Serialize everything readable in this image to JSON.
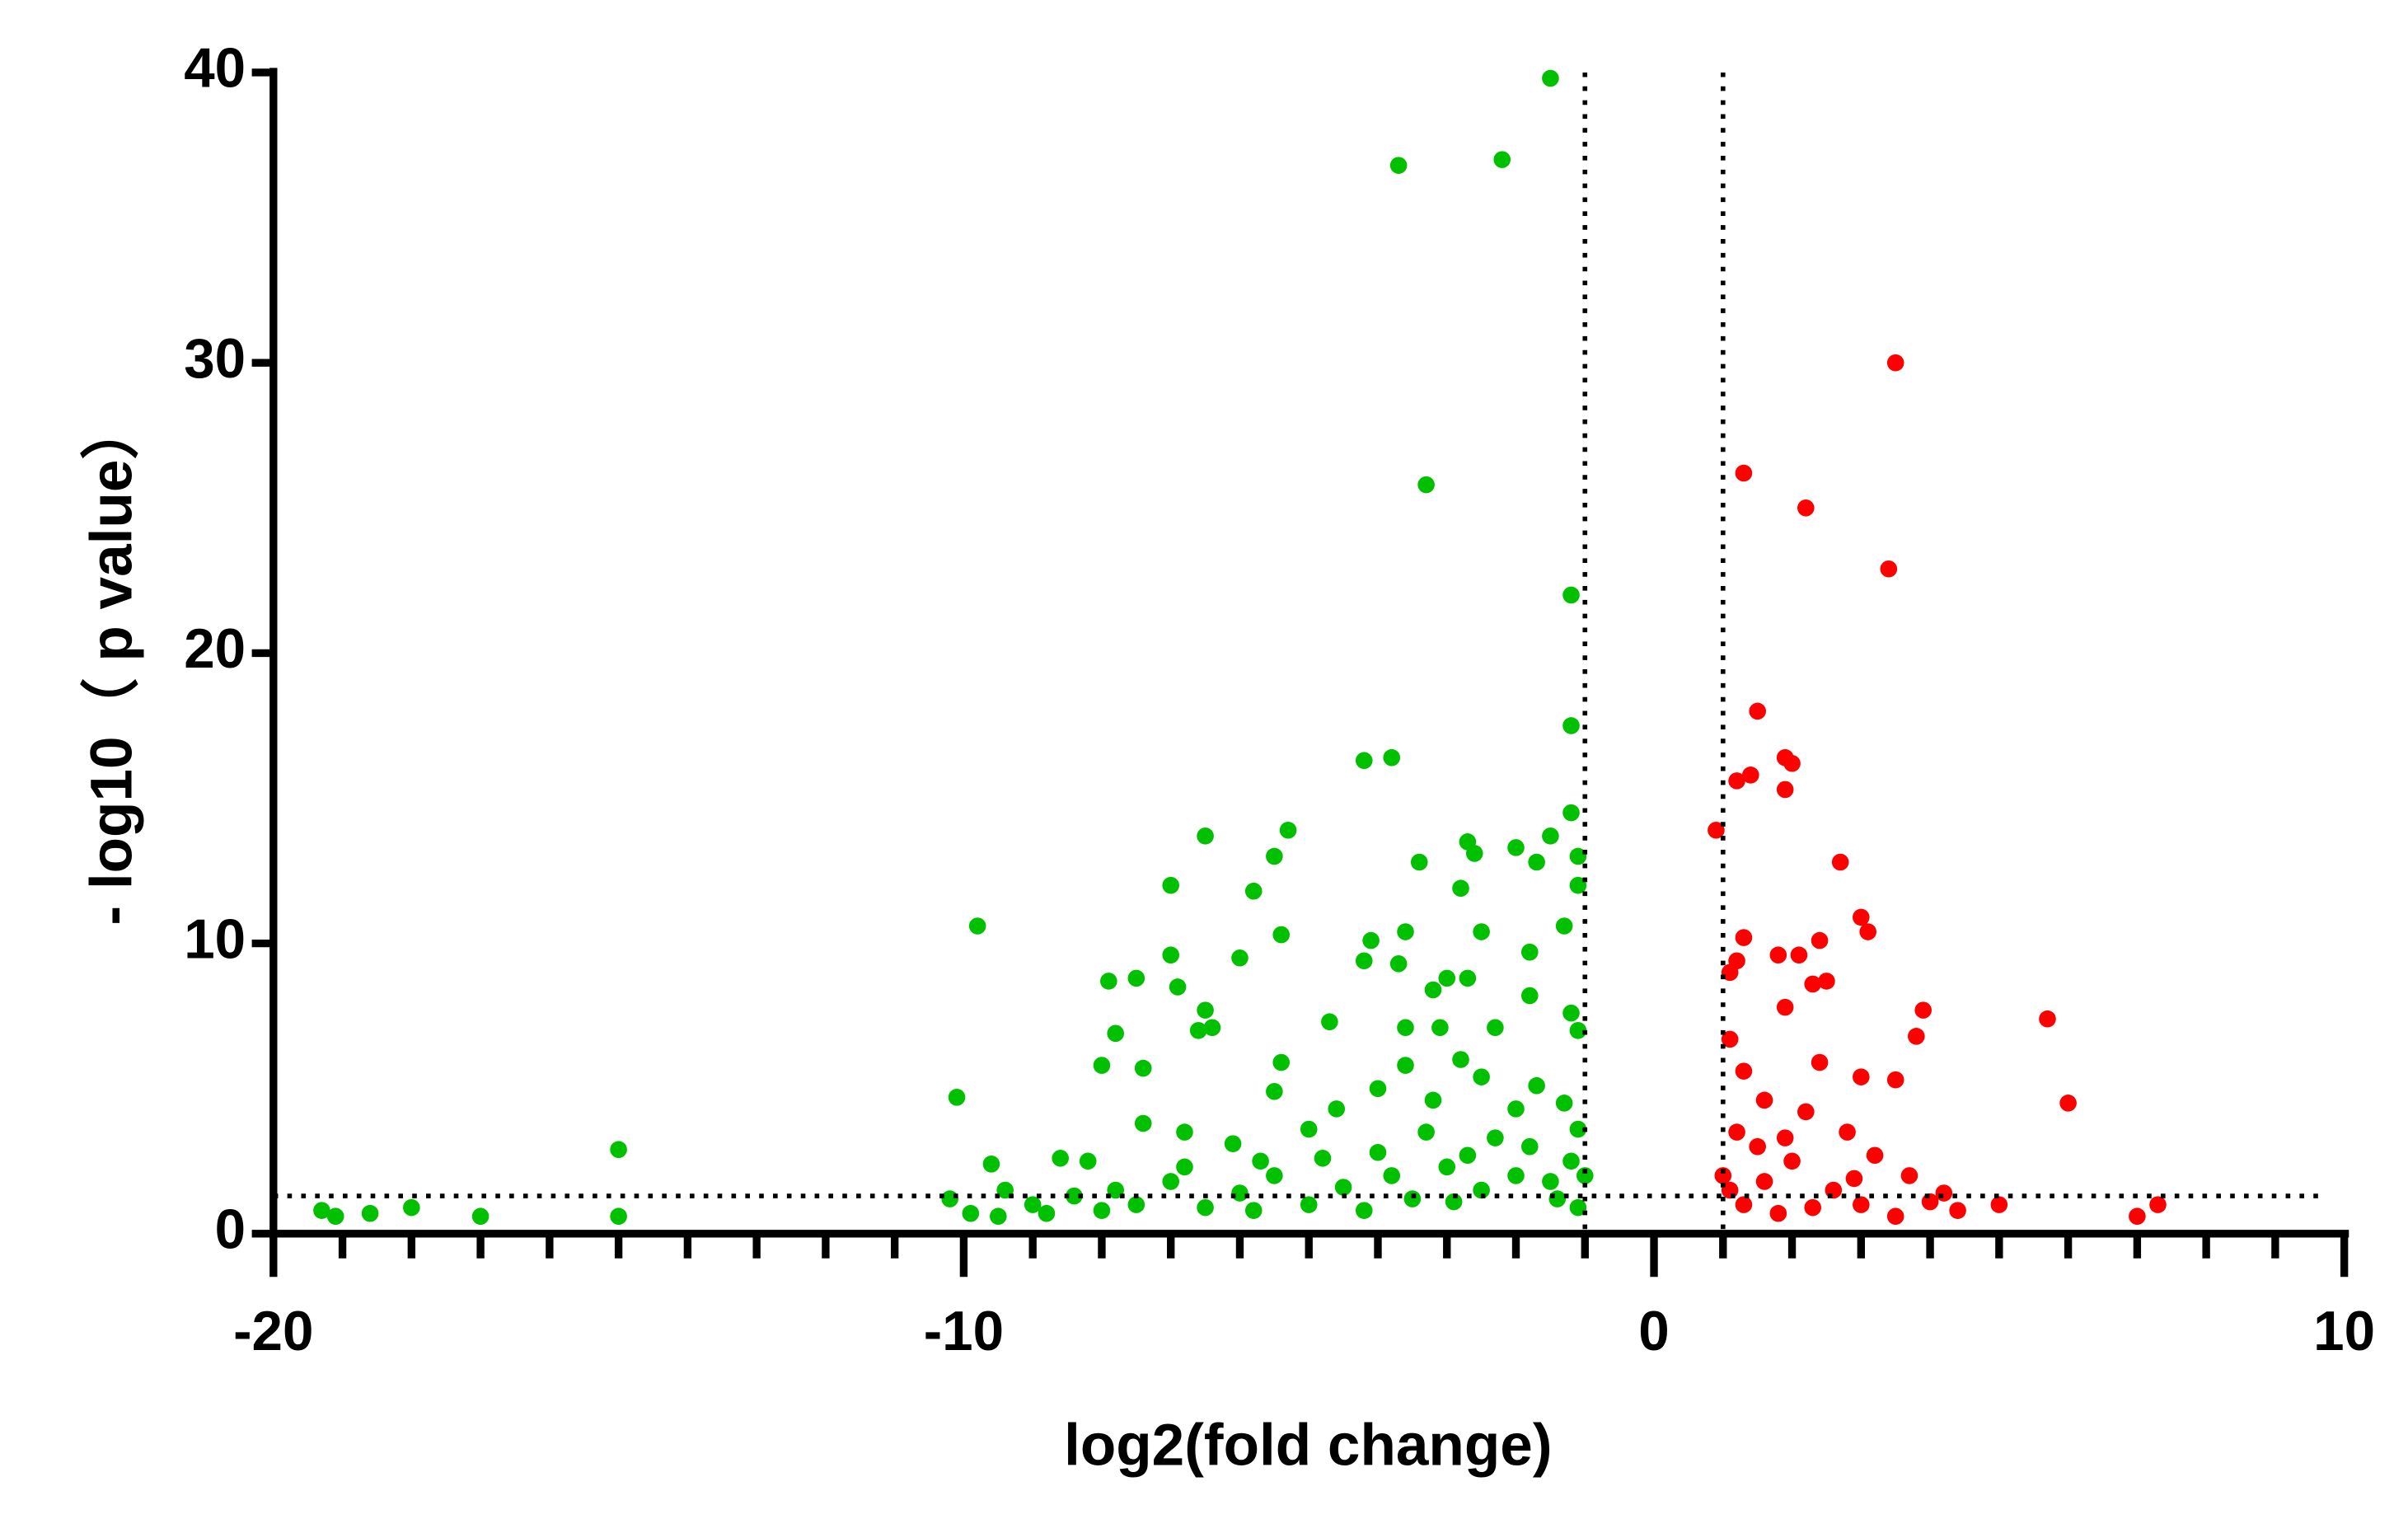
{
  "chart_data": {
    "type": "scatter",
    "xlabel": "log2(fold change)",
    "ylabel": "- log10（ p value）",
    "xlim": [
      -20,
      10
    ],
    "ylim": [
      0,
      40
    ],
    "xticks": [
      -20,
      -10,
      0,
      10
    ],
    "xminorticks": [
      -19,
      -18,
      -17,
      -16,
      -15,
      -14,
      -13,
      -12,
      -11,
      -9,
      -8,
      -7,
      -6,
      -5,
      -4,
      -3,
      -2,
      -1,
      1,
      2,
      3,
      4,
      5,
      6,
      7,
      8,
      9
    ],
    "yticks": [
      0,
      10,
      20,
      30,
      40
    ],
    "vlines": [
      -1,
      1
    ],
    "hline": 1.3,
    "series": [
      {
        "color": "#00c000",
        "x": [
          -1.5,
          -3.7,
          -2.2,
          -3.3,
          -1.2,
          -1.2,
          -4.2,
          -3.8,
          -1.2,
          -1.5,
          -1.1,
          -2.7,
          -2.0,
          -2.6,
          -6.5,
          -5.3,
          -5.5,
          -3.4,
          -1.7,
          -7.0,
          -5.8,
          -2.8,
          -1.1,
          -9.8,
          -5.4,
          -4.1,
          -3.6,
          -2.5,
          -1.3,
          -1.8,
          -6.0,
          -7.0,
          -4.2,
          -3.7,
          -7.5,
          -7.9,
          -6.9,
          -3.0,
          -2.7,
          -3.2,
          -1.8,
          -6.5,
          -4.7,
          -3.6,
          -3.1,
          -2.3,
          -6.6,
          -6.4,
          -1.2,
          -1.1,
          -7.8,
          -10.1,
          -8.0,
          -7.4,
          -5.4,
          -5.5,
          -15.0,
          -15.0,
          -17.0,
          -18.0,
          -18.6,
          -19.3,
          -19.1,
          -10.2,
          -9.6,
          -9.4,
          -9.9,
          -9.5,
          -8.8,
          -8.6,
          -8.2,
          -7.8,
          -7.4,
          -6.8,
          -6.1,
          -5.7,
          -5.0,
          -4.6,
          -4.0,
          -3.6,
          -3.2,
          -2.8,
          -2.5,
          -2.0,
          -1.7,
          -1.3,
          -1.1,
          -1.2,
          -1.5,
          -2.0,
          -2.5,
          -3.0,
          -3.5,
          -4.0,
          -4.5,
          -5.0,
          -5.5,
          -6.0,
          -6.5,
          -7.0,
          -7.5,
          -8.0,
          -1.1,
          -1.8,
          -2.3,
          -2.9,
          -3.3,
          -4.2,
          -4.8,
          -5.8,
          -6.8,
          -8.4,
          -9.0,
          -1.4,
          -2.7,
          -3.8,
          -1.0
        ],
        "values": [
          39.8,
          36.8,
          37.0,
          25.8,
          22.0,
          17.5,
          16.3,
          16.4,
          14.5,
          13.7,
          13.0,
          13.5,
          13.3,
          13.1,
          13.7,
          13.9,
          13.0,
          12.8,
          12.8,
          12.0,
          11.8,
          11.9,
          12.0,
          10.6,
          10.3,
          10.1,
          10.4,
          10.4,
          10.6,
          9.7,
          9.5,
          9.6,
          9.4,
          9.3,
          8.8,
          8.7,
          8.5,
          8.8,
          8.8,
          8.4,
          8.2,
          7.7,
          7.3,
          7.1,
          7.1,
          7.1,
          7.0,
          7.1,
          7.6,
          7.0,
          6.9,
          4.7,
          5.8,
          5.7,
          5.9,
          4.9,
          2.9,
          0.6,
          0.6,
          0.9,
          0.7,
          0.8,
          0.6,
          1.2,
          2.4,
          1.5,
          0.7,
          0.6,
          0.7,
          2.6,
          2.5,
          1.5,
          3.8,
          3.5,
          3.1,
          2.5,
          3.6,
          4.3,
          5.0,
          5.8,
          4.6,
          6.0,
          5.4,
          4.3,
          5.1,
          4.5,
          3.6,
          2.5,
          1.8,
          2.0,
          1.5,
          2.3,
          1.2,
          2.8,
          1.6,
          1.0,
          2.0,
          1.4,
          0.9,
          1.8,
          1.0,
          0.8,
          0.9,
          3.0,
          3.3,
          1.1,
          3.5,
          0.8,
          2.6,
          0.8,
          2.3,
          1.3,
          1.0,
          1.2,
          2.7,
          2.0,
          2.0
        ]
      },
      {
        "color": "#ff0000",
        "x": [
          3.5,
          1.3,
          2.2,
          3.4,
          1.5,
          1.9,
          2.0,
          1.2,
          1.4,
          1.9,
          0.9,
          2.7,
          3.0,
          3.1,
          2.4,
          1.3,
          2.1,
          1.8,
          1.2,
          1.1,
          2.3,
          2.5,
          3.9,
          5.7,
          1.9,
          6.0,
          3.8,
          3.5,
          3.0,
          2.4,
          7.3,
          7.0,
          5.0,
          4.4,
          4.2,
          3.7,
          3.2,
          2.8,
          2.2,
          1.6,
          1.3,
          1.1,
          1.5,
          1.0,
          2.0,
          2.6,
          3.0,
          1.3,
          1.8,
          3.5,
          1.1,
          1.6,
          2.3,
          4.0,
          1.2,
          1.9,
          2.9
        ],
        "values": [
          30.0,
          26.2,
          25.0,
          22.9,
          18.0,
          16.4,
          16.2,
          15.6,
          15.8,
          15.3,
          13.9,
          12.8,
          10.9,
          10.4,
          10.1,
          10.2,
          9.6,
          9.6,
          9.4,
          9.0,
          8.6,
          8.7,
          7.7,
          7.4,
          7.8,
          4.5,
          6.8,
          5.3,
          5.4,
          5.9,
          1.0,
          0.6,
          1.0,
          0.8,
          1.4,
          2.0,
          2.7,
          3.5,
          4.2,
          4.6,
          5.6,
          6.7,
          3.0,
          2.0,
          2.5,
          1.5,
          1.0,
          1.0,
          0.7,
          0.6,
          1.5,
          1.8,
          0.9,
          1.1,
          3.5,
          3.3,
          1.9
        ]
      }
    ]
  }
}
